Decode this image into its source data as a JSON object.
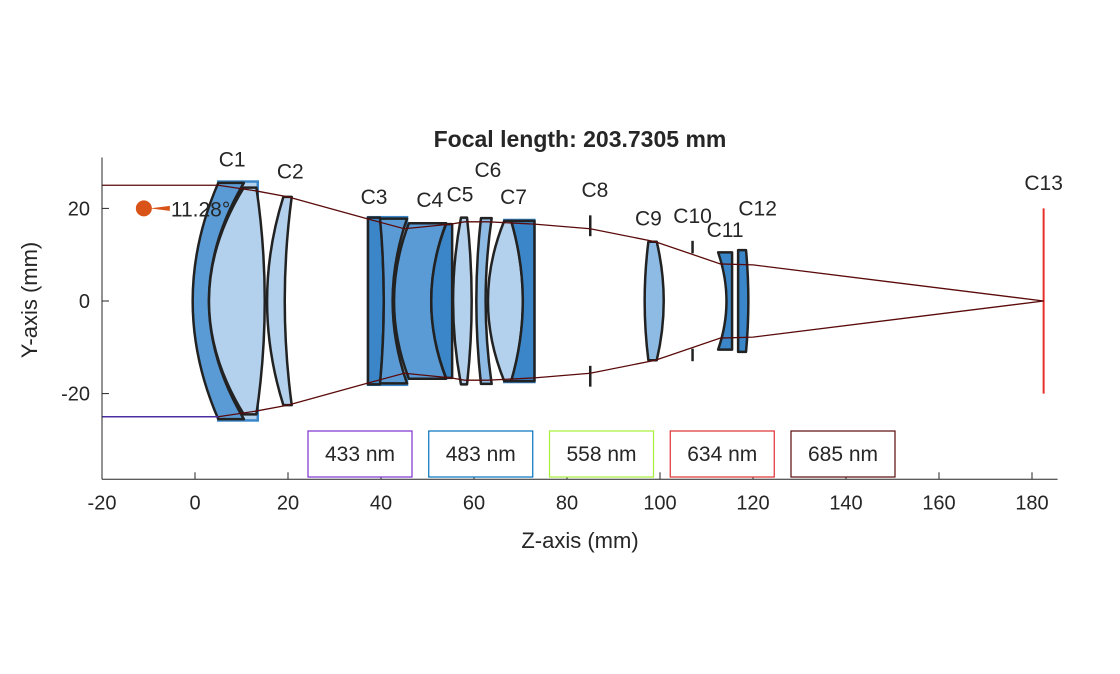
{
  "chart_data": {
    "type": "optical-layout",
    "title": "Focal length: 203.7305 mm",
    "xlabel": "Z-axis (mm)",
    "ylabel": "Y-axis (mm)",
    "xlim": [
      -20,
      185.5
    ],
    "ylim": [
      -38.5,
      31
    ],
    "xticks": [
      -20,
      0,
      20,
      40,
      60,
      80,
      100,
      120,
      140,
      160,
      180
    ],
    "yticks": [
      -20,
      0,
      20
    ],
    "field_angle": {
      "z": -11,
      "y": 20,
      "label": "11.28°",
      "color": "#d95319"
    },
    "components": [
      {
        "label": "C1",
        "elements": [
          {
            "le": 5,
            "lv": -0.5,
            "re": 10.5,
            "rv": 3.0,
            "h": 25.5,
            "color": "#5b9bd5"
          },
          {
            "le": 10.5,
            "lv": 3.0,
            "re": 13.2,
            "rv": 15.0,
            "h": 24.5,
            "color": "#b3d1ec"
          }
        ],
        "mount": {
          "z0": 5,
          "z1": 13.5,
          "h": 25.8
        }
      },
      {
        "label": "C2",
        "elements": [
          {
            "le": 19.0,
            "lv": 15.5,
            "re": 20.8,
            "rv": 19.3,
            "h": 22.5,
            "color": "#b3d1ec"
          }
        ]
      },
      {
        "label": "C3",
        "elements": [
          {
            "le": 37.2,
            "lv": 37.2,
            "re": 39.8,
            "rv": 40.6,
            "h": 18,
            "color": "#3a86c8"
          },
          {
            "le": 39.8,
            "lv": 40.6,
            "re": 45.6,
            "rv": 42.5,
            "h": 17.8,
            "color": "#5b9bd5"
          }
        ],
        "mount": {
          "z0": 37.2,
          "z1": 45.6,
          "h": 18.1
        }
      },
      {
        "label": "C4",
        "elements": [
          {
            "le": 46,
            "lv": 42.8,
            "re": 54,
            "rv": 50.8,
            "h": 16.8,
            "color": "#5b9bd5"
          },
          {
            "le": 54,
            "lv": 50.8,
            "re": 55.3,
            "rv": 55.3,
            "h": 16.6,
            "color": "#3a86c8"
          }
        ]
      },
      {
        "label": "C5",
        "elements": [
          {
            "le": 57.2,
            "lv": 55.5,
            "re": 58.5,
            "rv": 59.5,
            "h": 18,
            "color": "#b3d1ec"
          }
        ]
      },
      {
        "label": "C6",
        "elements": [
          {
            "le": 61.5,
            "lv": 60.5,
            "re": 63.8,
            "rv": 62.5,
            "h": 17.9,
            "color": "#8dbbe3"
          }
        ]
      },
      {
        "label": "C7",
        "elements": [
          {
            "le": 66.5,
            "lv": 63,
            "re": 68,
            "rv": 70.5,
            "h": 17.3,
            "color": "#b3d1ec"
          },
          {
            "le": 68,
            "lv": 70.5,
            "re": 73,
            "rv": 73,
            "h": 17.3,
            "color": "#3a86c8"
          }
        ],
        "mount": {
          "z0": 66.5,
          "z1": 73,
          "h": 17.5
        }
      },
      {
        "label": "C8",
        "stop": {
          "z": 85,
          "inner": 14,
          "outer": 18.5
        }
      },
      {
        "label": "C9",
        "elements": [
          {
            "le": 97.5,
            "lv": 96.7,
            "re": 99.3,
            "rv": 100.8,
            "h": 12.8,
            "color": "#8dbbe3"
          }
        ]
      },
      {
        "label": "C10",
        "stop": {
          "z": 107,
          "inner": 10.3,
          "outer": 13
        }
      },
      {
        "label": "C11",
        "elements": [
          {
            "le": 112.5,
            "lv": 114.3,
            "re": 115.5,
            "rv": 115.5,
            "h": 10.5,
            "color": "#3a86c8"
          }
        ]
      },
      {
        "label": "C12",
        "elements": [
          {
            "le": 116.8,
            "lv": 116.8,
            "re": 118.5,
            "rv": 119,
            "h": 11,
            "color": "#3a86c8"
          }
        ]
      },
      {
        "label": "C13",
        "image_plane": {
          "z": 182.5,
          "h": 20,
          "color": "#e8302a"
        }
      }
    ],
    "rays": {
      "color": "#5a0a0a",
      "z": [
        -20,
        5,
        13,
        20,
        38,
        45,
        55,
        58,
        63,
        73,
        85,
        99,
        113,
        120,
        182.5
      ],
      "y": [
        25,
        25,
        23.8,
        22.5,
        17.5,
        15.6,
        16.6,
        17.1,
        17.1,
        16.6,
        15.6,
        12.8,
        8,
        7.8,
        0
      ]
    },
    "legend": [
      {
        "name": "433 nm",
        "color": "#7e2fd0"
      },
      {
        "name": "483 nm",
        "color": "#0072bd"
      },
      {
        "name": "558 nm",
        "color": "#a6f03a"
      },
      {
        "name": "634 nm",
        "color": "#e03030"
      },
      {
        "name": "685 nm",
        "color": "#5a0a0a"
      }
    ]
  }
}
